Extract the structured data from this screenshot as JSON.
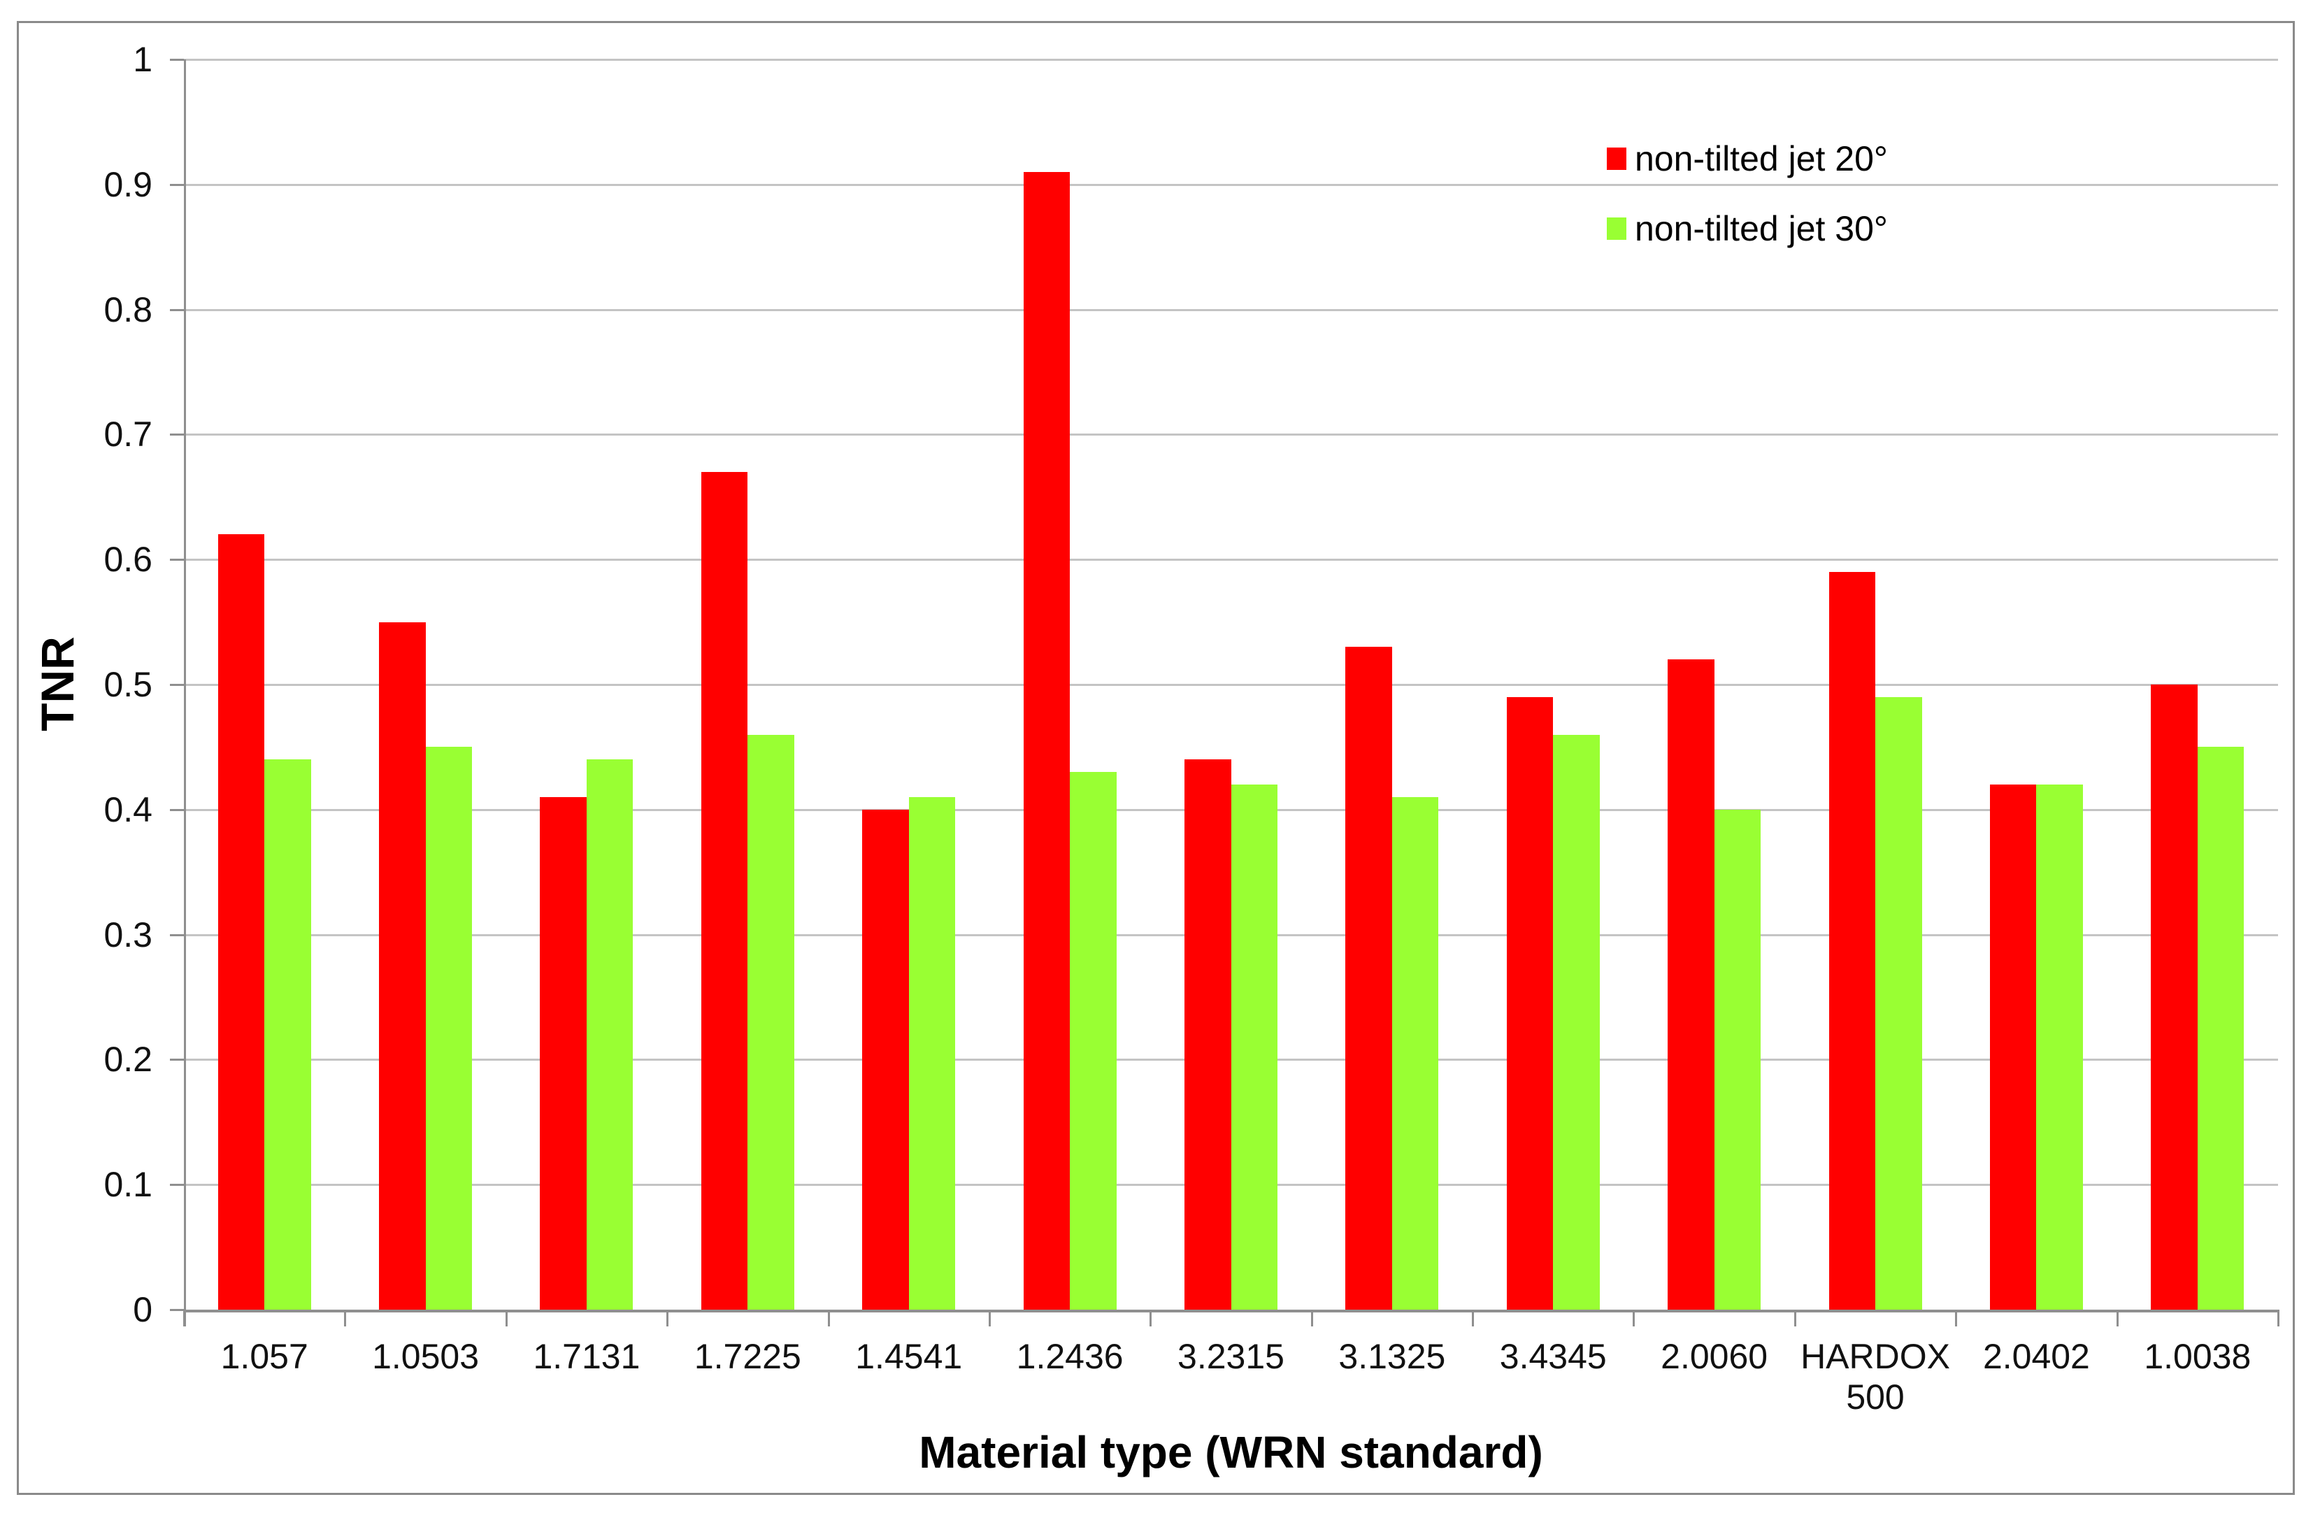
{
  "axes": {
    "y_title": "TNR",
    "x_title": "Material type (WRN standard)",
    "y_tick_labels": [
      "0",
      "0.1",
      "0.2",
      "0.3",
      "0.4",
      "0.5",
      "0.6",
      "0.7",
      "0.8",
      "0.9",
      "1"
    ]
  },
  "legend": {
    "items": [
      {
        "label": "non-tilted jet 20°",
        "color": "#ff0000"
      },
      {
        "label": "non-tilted jet 30°",
        "color": "#99ff33"
      }
    ]
  },
  "chart_data": {
    "type": "bar",
    "title": "",
    "xlabel": "Material type (WRN standard)",
    "ylabel": "TNR",
    "ylim": [
      0,
      1
    ],
    "y_tick_step": 0.1,
    "grid": "horizontal gridlines every 0.1",
    "legend_position": "upper right inside plot",
    "categories": [
      "1.057",
      "1.0503",
      "1.7131",
      "1.7225",
      "1.4541",
      "1.2436",
      "3.2315",
      "3.1325",
      "3.4345",
      "2.0060",
      "HARDOX 500",
      "2.0402",
      "1.0038"
    ],
    "series": [
      {
        "name": "non-tilted jet 20°",
        "color": "#ff0000",
        "values": [
          0.62,
          0.55,
          0.41,
          0.67,
          0.4,
          0.91,
          0.44,
          0.53,
          0.49,
          0.52,
          0.59,
          0.42,
          0.5
        ]
      },
      {
        "name": "non-tilted jet 30°",
        "color": "#99ff33",
        "values": [
          0.44,
          0.45,
          0.44,
          0.46,
          0.41,
          0.43,
          0.42,
          0.41,
          0.46,
          0.4,
          0.49,
          0.42,
          0.45
        ]
      }
    ]
  },
  "style": {
    "grid_color": "#c4c4c4",
    "axis_color": "#8f8f8f",
    "border_color": "#8a8a8a",
    "text_color": "#111111"
  }
}
